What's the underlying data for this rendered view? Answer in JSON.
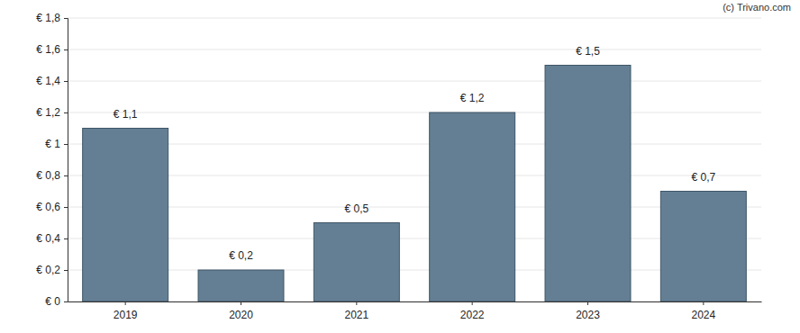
{
  "chart_data": {
    "type": "bar",
    "annotations": [
      "(c) Trivano.com"
    ],
    "categories": [
      "2019",
      "2020",
      "2021",
      "2022",
      "2023",
      "2024"
    ],
    "values": [
      1.1,
      0.2,
      0.5,
      1.2,
      1.5,
      0.7
    ],
    "value_labels": [
      "€ 1,1",
      "€ 0,2",
      "€ 0,5",
      "€ 1,2",
      "€ 1,5",
      "€ 0,7"
    ],
    "data_labels": true,
    "color": "#647f93",
    "ylim": [
      0,
      1.8
    ],
    "yticks": [
      {
        "value": 0,
        "label": "€ 0"
      },
      {
        "value": 0.2,
        "label": "€ 0,2"
      },
      {
        "value": 0.4,
        "label": "€ 0,4"
      },
      {
        "value": 0.6,
        "label": "€ 0,6"
      },
      {
        "value": 0.8,
        "label": "€ 0,8"
      },
      {
        "value": 1,
        "label": "€ 1"
      },
      {
        "value": 1.2,
        "label": "€ 1,2"
      },
      {
        "value": 1.4,
        "label": "€ 1,4"
      },
      {
        "value": 1.6,
        "label": "€ 1,6"
      },
      {
        "value": 1.8,
        "label": "€ 1,8"
      }
    ],
    "grid": true
  }
}
